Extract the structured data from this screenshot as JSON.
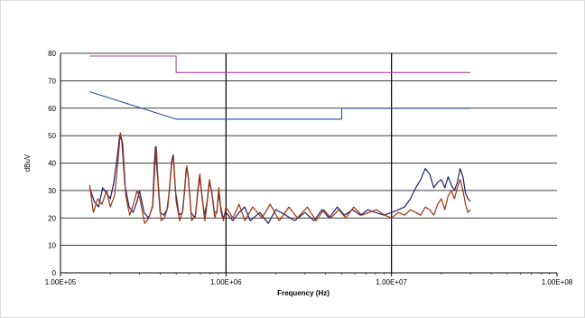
{
  "chart_data": {
    "type": "line",
    "title": "",
    "xlabel": "Frequency (Hz)",
    "ylabel": "dBuV",
    "xscale": "log",
    "xlim": [
      100000,
      100000000
    ],
    "ylim": [
      0,
      80
    ],
    "grid": true,
    "x_tick_labels": [
      "1.00E+05",
      "1.00E+06",
      "1.00E+07",
      "1.00E+08"
    ],
    "x_tick_values": [
      100000,
      1000000,
      10000000,
      100000000
    ],
    "y_ticks": [
      0,
      10,
      20,
      30,
      40,
      50,
      60,
      70,
      80
    ],
    "colors": {
      "limit_upper": "#b0479b",
      "limit_lower": "#2f4f9a",
      "trace_navy": "#1f1f6e",
      "trace_brown": "#a0330e"
    },
    "series": [
      {
        "color_key": "limit_upper",
        "points": [
          [
            150000,
            79
          ],
          [
            500000,
            79
          ],
          [
            500000,
            73
          ],
          [
            30000000,
            73
          ]
        ]
      },
      {
        "color_key": "limit_lower",
        "points": [
          [
            150000,
            66
          ],
          [
            500000,
            56
          ],
          [
            5000000,
            56
          ],
          [
            5000000,
            60
          ],
          [
            30000000,
            60
          ]
        ]
      },
      {
        "color_key": "trace_navy",
        "points": [
          [
            150000,
            31
          ],
          [
            160000,
            26
          ],
          [
            170000,
            24
          ],
          [
            180000,
            31
          ],
          [
            190000,
            29
          ],
          [
            200000,
            27
          ],
          [
            210000,
            33
          ],
          [
            220000,
            42
          ],
          [
            228000,
            50
          ],
          [
            235000,
            48
          ],
          [
            245000,
            32
          ],
          [
            260000,
            24
          ],
          [
            275000,
            22
          ],
          [
            290000,
            26
          ],
          [
            300000,
            30
          ],
          [
            320000,
            22
          ],
          [
            340000,
            20
          ],
          [
            360000,
            24
          ],
          [
            370000,
            41
          ],
          [
            375000,
            46
          ],
          [
            385000,
            36
          ],
          [
            400000,
            22
          ],
          [
            420000,
            21
          ],
          [
            440000,
            23
          ],
          [
            455000,
            30
          ],
          [
            470000,
            41
          ],
          [
            480000,
            43
          ],
          [
            495000,
            30
          ],
          [
            520000,
            21
          ],
          [
            545000,
            22
          ],
          [
            560000,
            29
          ],
          [
            575000,
            38
          ],
          [
            590000,
            36
          ],
          [
            615000,
            22
          ],
          [
            650000,
            20
          ],
          [
            670000,
            27
          ],
          [
            690000,
            35
          ],
          [
            710000,
            30
          ],
          [
            740000,
            21
          ],
          [
            770000,
            26
          ],
          [
            790000,
            33
          ],
          [
            820000,
            30
          ],
          [
            850000,
            22
          ],
          [
            880000,
            22
          ],
          [
            900000,
            29
          ],
          [
            930000,
            24
          ],
          [
            960000,
            20
          ],
          [
            1000000,
            22
          ],
          [
            1100000,
            19
          ],
          [
            1200000,
            22
          ],
          [
            1300000,
            24
          ],
          [
            1400000,
            19
          ],
          [
            1600000,
            22
          ],
          [
            1800000,
            18
          ],
          [
            2000000,
            23
          ],
          [
            2300000,
            21
          ],
          [
            2600000,
            19
          ],
          [
            3000000,
            22
          ],
          [
            3400000,
            19
          ],
          [
            3800000,
            23
          ],
          [
            4200000,
            20
          ],
          [
            4700000,
            24
          ],
          [
            5200000,
            21
          ],
          [
            5800000,
            23
          ],
          [
            6500000,
            21
          ],
          [
            7200000,
            23
          ],
          [
            8000000,
            22
          ],
          [
            9000000,
            21
          ],
          [
            10000000,
            22
          ],
          [
            11000000,
            23
          ],
          [
            12000000,
            24
          ],
          [
            13000000,
            27
          ],
          [
            14000000,
            31
          ],
          [
            15000000,
            34
          ],
          [
            16000000,
            38
          ],
          [
            17000000,
            36
          ],
          [
            18000000,
            31
          ],
          [
            19000000,
            33
          ],
          [
            20000000,
            34
          ],
          [
            21000000,
            31
          ],
          [
            22000000,
            35
          ],
          [
            23000000,
            32
          ],
          [
            24000000,
            30
          ],
          [
            25000000,
            33
          ],
          [
            26000000,
            38
          ],
          [
            27000000,
            35
          ],
          [
            28000000,
            29
          ],
          [
            29000000,
            27
          ],
          [
            30000000,
            26
          ]
        ]
      },
      {
        "color_key": "trace_brown",
        "points": [
          [
            150000,
            32
          ],
          [
            158000,
            22
          ],
          [
            168000,
            27
          ],
          [
            178000,
            25
          ],
          [
            190000,
            30
          ],
          [
            200000,
            24
          ],
          [
            212000,
            28
          ],
          [
            222000,
            40
          ],
          [
            230000,
            51
          ],
          [
            238000,
            47
          ],
          [
            248000,
            28
          ],
          [
            262000,
            21
          ],
          [
            276000,
            25
          ],
          [
            290000,
            30
          ],
          [
            302000,
            27
          ],
          [
            322000,
            18
          ],
          [
            342000,
            20
          ],
          [
            362000,
            25
          ],
          [
            372000,
            39
          ],
          [
            379000,
            46
          ],
          [
            389000,
            33
          ],
          [
            405000,
            19
          ],
          [
            425000,
            20
          ],
          [
            445000,
            24
          ],
          [
            460000,
            34
          ],
          [
            474000,
            42
          ],
          [
            484000,
            40
          ],
          [
            500000,
            26
          ],
          [
            525000,
            19
          ],
          [
            550000,
            23
          ],
          [
            565000,
            32
          ],
          [
            580000,
            39
          ],
          [
            596000,
            33
          ],
          [
            620000,
            19
          ],
          [
            655000,
            21
          ],
          [
            675000,
            30
          ],
          [
            695000,
            36
          ],
          [
            715000,
            28
          ],
          [
            745000,
            19
          ],
          [
            775000,
            27
          ],
          [
            795000,
            34
          ],
          [
            825000,
            28
          ],
          [
            855000,
            20
          ],
          [
            885000,
            23
          ],
          [
            905000,
            31
          ],
          [
            935000,
            22
          ],
          [
            965000,
            19
          ],
          [
            1000000,
            24
          ],
          [
            1100000,
            20
          ],
          [
            1200000,
            25
          ],
          [
            1300000,
            19
          ],
          [
            1450000,
            24
          ],
          [
            1650000,
            20
          ],
          [
            1850000,
            25
          ],
          [
            2100000,
            19
          ],
          [
            2400000,
            24
          ],
          [
            2700000,
            20
          ],
          [
            3100000,
            24
          ],
          [
            3500000,
            19
          ],
          [
            3900000,
            23
          ],
          [
            4300000,
            20
          ],
          [
            4800000,
            23
          ],
          [
            5300000,
            20
          ],
          [
            5900000,
            24
          ],
          [
            6600000,
            21
          ],
          [
            7300000,
            22
          ],
          [
            8100000,
            23
          ],
          [
            9100000,
            21
          ],
          [
            10000000,
            20
          ],
          [
            11000000,
            22
          ],
          [
            12000000,
            21
          ],
          [
            13000000,
            23
          ],
          [
            14000000,
            22
          ],
          [
            15000000,
            21
          ],
          [
            16000000,
            24
          ],
          [
            17000000,
            23
          ],
          [
            18000000,
            21
          ],
          [
            19000000,
            25
          ],
          [
            20000000,
            27
          ],
          [
            21000000,
            23
          ],
          [
            22000000,
            28
          ],
          [
            23000000,
            30
          ],
          [
            24000000,
            27
          ],
          [
            25000000,
            31
          ],
          [
            26000000,
            34
          ],
          [
            27000000,
            30
          ],
          [
            28000000,
            25
          ],
          [
            29000000,
            22
          ],
          [
            30000000,
            23
          ]
        ]
      }
    ]
  }
}
